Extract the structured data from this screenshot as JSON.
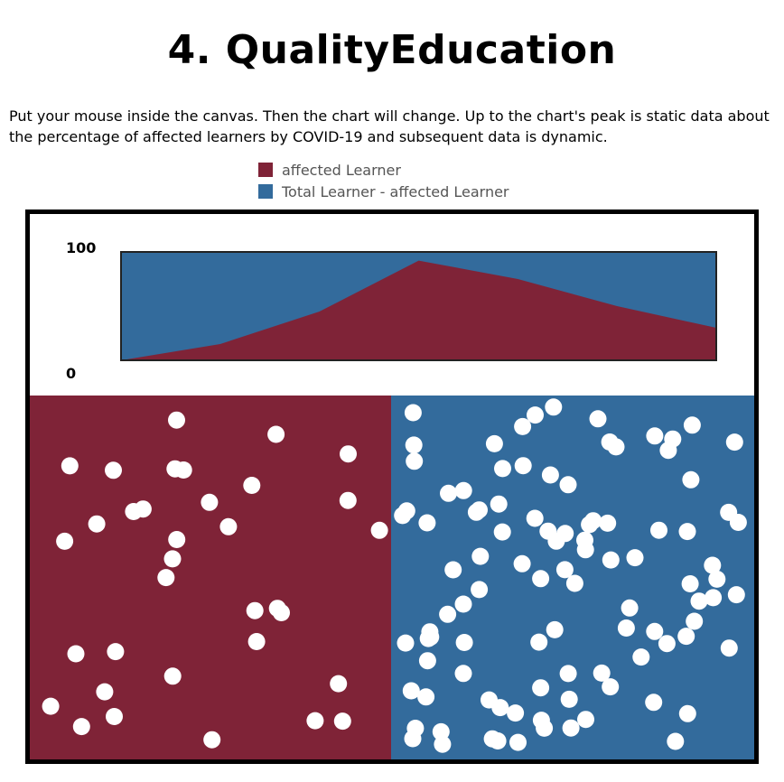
{
  "page": {
    "title": "4. QualityEducation",
    "description": "Put your mouse inside the canvas. Then the chart will change. Up to the chart's peak is static data about the percentage of affected learners by COVID-19 and subsequent data is dynamic."
  },
  "colors": {
    "affected": "#7f2337",
    "unaffected": "#336b9c",
    "dot": "#ffffff"
  },
  "chart_data": {
    "type": "area",
    "stacked": true,
    "series": [
      {
        "name": "affected Learner",
        "color": "#7f2337",
        "values": [
          0,
          15,
          45,
          92,
          75,
          50,
          30
        ]
      },
      {
        "name": "Total Learner - affected Learner",
        "color": "#336b9c",
        "values": [
          100,
          85,
          55,
          8,
          25,
          50,
          70
        ]
      }
    ],
    "ylim": [
      0,
      100
    ],
    "ytick_labels": [
      "100",
      "0"
    ],
    "grid": false,
    "legend_position": "top"
  },
  "scatter_panels": {
    "affected_dot_count": 34,
    "unaffected_dot_count": 100
  }
}
